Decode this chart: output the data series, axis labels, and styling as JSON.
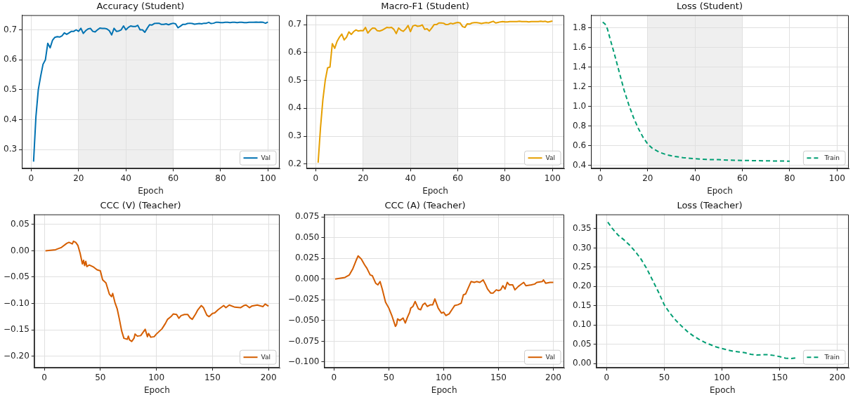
{
  "chart_data": [
    {
      "type": "line",
      "title": "Accuracy (Student)",
      "xlabel": "Epoch",
      "grid": true,
      "legend": "bottom right",
      "xlim": [
        -3.95,
        104.95
      ],
      "xticks": [
        0,
        20,
        40,
        60,
        80,
        100
      ],
      "ylim": [
        0.237,
        0.749
      ],
      "yticks": [
        0.3,
        0.4,
        0.5,
        0.6,
        0.7
      ],
      "bands": [
        {
          "axis": "x",
          "from": 20,
          "to": 60,
          "color": "#efefef"
        }
      ],
      "x": [
        1,
        2,
        3,
        4,
        5,
        6,
        7,
        8,
        9,
        10,
        11,
        12,
        13,
        14,
        15,
        16,
        17,
        18,
        19,
        20,
        21,
        22,
        23,
        24,
        25,
        26,
        27,
        28,
        29,
        30,
        31,
        32,
        33,
        34,
        35,
        36,
        37,
        38,
        39,
        40,
        41,
        42,
        43,
        44,
        45,
        46,
        47,
        48,
        49,
        50,
        51,
        52,
        53,
        54,
        55,
        56,
        57,
        58,
        59,
        60,
        61,
        62,
        63,
        64,
        65,
        66,
        67,
        68,
        69,
        70,
        71,
        72,
        73,
        74,
        75,
        76,
        77,
        78,
        79,
        80,
        81,
        82,
        83,
        84,
        85,
        86,
        87,
        88,
        89,
        90,
        91,
        92,
        93,
        94,
        95,
        96,
        97,
        98,
        99,
        100
      ],
      "series": [
        {
          "name": "Val",
          "color": "#0072b2",
          "values": [
            0.26,
            0.41,
            0.5,
            0.545,
            0.585,
            0.6,
            0.655,
            0.64,
            0.665,
            0.675,
            0.677,
            0.676,
            0.68,
            0.69,
            0.685,
            0.69,
            0.695,
            0.695,
            0.7,
            0.695,
            0.705,
            0.688,
            0.697,
            0.703,
            0.705,
            0.695,
            0.693,
            0.7,
            0.706,
            0.705,
            0.705,
            0.703,
            0.697,
            0.683,
            0.705,
            0.695,
            0.696,
            0.7,
            0.713,
            0.7,
            0.708,
            0.713,
            0.711,
            0.711,
            0.715,
            0.7,
            0.7,
            0.692,
            0.705,
            0.717,
            0.716,
            0.721,
            0.722,
            0.722,
            0.718,
            0.718,
            0.72,
            0.717,
            0.72,
            0.722,
            0.72,
            0.707,
            0.712,
            0.718,
            0.718,
            0.721,
            0.722,
            0.721,
            0.719,
            0.72,
            0.721,
            0.72,
            0.722,
            0.722,
            0.725,
            0.721,
            0.722,
            0.725,
            0.725,
            0.724,
            0.724,
            0.725,
            0.725,
            0.724,
            0.725,
            0.725,
            0.724,
            0.725,
            0.725,
            0.724,
            0.724,
            0.725,
            0.725,
            0.725,
            0.726,
            0.725,
            0.726,
            0.725,
            0.722,
            0.726
          ]
        }
      ]
    },
    {
      "type": "line",
      "title": "Macro-F1 (Student)",
      "xlabel": "Epoch",
      "grid": true,
      "legend": "bottom right",
      "xlim": [
        -3.95,
        104.95
      ],
      "xticks": [
        0,
        20,
        40,
        60,
        80,
        100
      ],
      "ylim": [
        0.184,
        0.734
      ],
      "yticks": [
        0.2,
        0.3,
        0.4,
        0.5,
        0.6,
        0.7
      ],
      "bands": [
        {
          "axis": "x",
          "from": 20,
          "to": 60,
          "color": "#efefef"
        }
      ],
      "x": [
        1,
        2,
        3,
        4,
        5,
        6,
        7,
        8,
        9,
        10,
        11,
        12,
        13,
        14,
        15,
        16,
        17,
        18,
        19,
        20,
        21,
        22,
        23,
        24,
        25,
        26,
        27,
        28,
        29,
        30,
        31,
        32,
        33,
        34,
        35,
        36,
        37,
        38,
        39,
        40,
        41,
        42,
        43,
        44,
        45,
        46,
        47,
        48,
        49,
        50,
        51,
        52,
        53,
        54,
        55,
        56,
        57,
        58,
        59,
        60,
        61,
        62,
        63,
        64,
        65,
        66,
        67,
        68,
        69,
        70,
        71,
        72,
        73,
        74,
        75,
        76,
        77,
        78,
        79,
        80,
        81,
        82,
        83,
        84,
        85,
        86,
        87,
        88,
        89,
        90,
        91,
        92,
        93,
        94,
        95,
        96,
        97,
        98,
        99,
        100
      ],
      "series": [
        {
          "name": "Val",
          "color": "#e69f00",
          "values": [
            0.205,
            0.33,
            0.43,
            0.5,
            0.545,
            0.548,
            0.632,
            0.615,
            0.64,
            0.655,
            0.666,
            0.645,
            0.655,
            0.674,
            0.665,
            0.675,
            0.681,
            0.677,
            0.679,
            0.678,
            0.69,
            0.67,
            0.68,
            0.688,
            0.687,
            0.678,
            0.677,
            0.68,
            0.685,
            0.69,
            0.689,
            0.69,
            0.683,
            0.668,
            0.688,
            0.68,
            0.676,
            0.685,
            0.697,
            0.675,
            0.695,
            0.698,
            0.694,
            0.695,
            0.699,
            0.683,
            0.685,
            0.677,
            0.688,
            0.7,
            0.7,
            0.706,
            0.706,
            0.705,
            0.7,
            0.701,
            0.705,
            0.703,
            0.706,
            0.708,
            0.706,
            0.693,
            0.69,
            0.703,
            0.702,
            0.706,
            0.707,
            0.707,
            0.706,
            0.704,
            0.706,
            0.707,
            0.706,
            0.709,
            0.712,
            0.706,
            0.708,
            0.71,
            0.711,
            0.71,
            0.71,
            0.711,
            0.711,
            0.711,
            0.711,
            0.712,
            0.711,
            0.711,
            0.711,
            0.71,
            0.711,
            0.711,
            0.711,
            0.711,
            0.712,
            0.711,
            0.712,
            0.709,
            0.711,
            0.713
          ]
        }
      ]
    },
    {
      "type": "line",
      "title": "Loss (Student)",
      "xlabel": "Epoch",
      "grid": true,
      "legend": "bottom right",
      "line_style": "dashed",
      "xlim": [
        -3.95,
        104.95
      ],
      "xticks": [
        0,
        20,
        40,
        60,
        80,
        100
      ],
      "ylim": [
        0.37,
        1.93
      ],
      "yticks": [
        0.4,
        0.6,
        0.8,
        {
          "value": 1,
          "label": "1.0"
        },
        1.2,
        1.4,
        1.6,
        1.8
      ],
      "bands": [
        {
          "axis": "x",
          "from": 20,
          "to": 60,
          "color": "#efefef"
        }
      ],
      "x": [
        1,
        2,
        3,
        4,
        6,
        8,
        10,
        12,
        14,
        16,
        18,
        20,
        22,
        25,
        28,
        31,
        35,
        40,
        45,
        50,
        55,
        60,
        70,
        80
      ],
      "series": [
        {
          "name": "Train",
          "color": "#009e73",
          "values": [
            1.86,
            1.84,
            1.79,
            1.7,
            1.53,
            1.35,
            1.17,
            1.02,
            0.89,
            0.78,
            0.69,
            0.62,
            0.575,
            0.535,
            0.51,
            0.495,
            0.48,
            0.47,
            0.462,
            0.46,
            0.455,
            0.452,
            0.448,
            0.445
          ]
        }
      ]
    },
    {
      "type": "line",
      "title": "CCC (V) (Teacher)",
      "xlabel": "Epoch",
      "grid": true,
      "legend": "bottom right",
      "xlim": [
        -8.95,
        209.95
      ],
      "xticks": [
        0,
        50,
        100,
        150,
        200
      ],
      "ylim": [
        -0.222,
        0.069
      ],
      "yticks": [
        {
          "value": -0.2,
          "label": "−0.20"
        },
        {
          "value": -0.15,
          "label": "−0.15"
        },
        {
          "value": -0.1,
          "label": "−0.10"
        },
        {
          "value": -0.05,
          "label": "−0.05"
        },
        {
          "value": 0,
          "label": "0.00"
        },
        0.05
      ],
      "x": [
        1,
        10,
        15,
        20,
        22,
        25,
        26,
        28,
        30,
        32,
        33,
        34,
        35,
        36,
        37,
        38,
        40,
        44,
        47,
        50,
        52,
        55,
        58,
        60,
        61,
        63,
        65,
        67,
        69,
        71,
        74,
        75,
        76,
        78,
        80,
        81,
        83,
        86,
        88,
        90,
        92,
        93,
        95,
        98,
        100,
        105,
        108,
        110,
        113,
        115,
        118,
        120,
        122,
        125,
        128,
        130,
        132,
        135,
        137,
        140,
        142,
        145,
        147,
        150,
        152,
        155,
        160,
        162,
        165,
        170,
        175,
        178,
        180,
        183,
        185,
        190,
        195,
        197,
        200
      ],
      "series": [
        {
          "name": "Val",
          "color": "#d55e00",
          "values": [
            0.0,
            0.002,
            0.006,
            0.014,
            0.016,
            0.013,
            0.018,
            0.016,
            0.01,
            -0.005,
            -0.015,
            -0.025,
            -0.018,
            -0.028,
            -0.02,
            -0.03,
            -0.027,
            -0.031,
            -0.036,
            -0.038,
            -0.055,
            -0.061,
            -0.082,
            -0.087,
            -0.081,
            -0.098,
            -0.11,
            -0.13,
            -0.152,
            -0.166,
            -0.168,
            -0.162,
            -0.169,
            -0.172,
            -0.166,
            -0.158,
            -0.162,
            -0.161,
            -0.155,
            -0.149,
            -0.163,
            -0.157,
            -0.164,
            -0.163,
            -0.158,
            -0.148,
            -0.138,
            -0.13,
            -0.125,
            -0.12,
            -0.121,
            -0.128,
            -0.123,
            -0.121,
            -0.121,
            -0.127,
            -0.13,
            -0.12,
            -0.112,
            -0.104,
            -0.108,
            -0.122,
            -0.125,
            -0.119,
            -0.118,
            -0.112,
            -0.104,
            -0.108,
            -0.103,
            -0.107,
            -0.108,
            -0.104,
            -0.103,
            -0.108,
            -0.105,
            -0.103,
            -0.106,
            -0.101,
            -0.105
          ]
        }
      ]
    },
    {
      "type": "line",
      "title": "CCC (A) (Teacher)",
      "xlabel": "Epoch",
      "grid": true,
      "legend": "bottom right",
      "xlim": [
        -8.95,
        209.95
      ],
      "xticks": [
        0,
        50,
        100,
        150,
        200
      ],
      "ylim": [
        -0.107,
        0.078
      ],
      "yticks": [
        {
          "value": -0.1,
          "label": "−0.100"
        },
        {
          "value": -0.075,
          "label": "−0.075"
        },
        {
          "value": -0.05,
          "label": "−0.050"
        },
        {
          "value": -0.025,
          "label": "−0.025"
        },
        {
          "value": 0,
          "label": "0.000"
        },
        {
          "value": 0.025,
          "label": "0.025"
        },
        {
          "value": 0.05,
          "label": "0.050"
        },
        {
          "value": 0.075,
          "label": "0.075"
        }
      ],
      "x": [
        1,
        10,
        14,
        17,
        20,
        22,
        25,
        28,
        30,
        33,
        35,
        38,
        40,
        42,
        44,
        47,
        50,
        53,
        56,
        57,
        58,
        60,
        63,
        65,
        67,
        69,
        70,
        72,
        74,
        77,
        79,
        81,
        83,
        85,
        88,
        90,
        92,
        95,
        98,
        100,
        102,
        105,
        108,
        110,
        113,
        116,
        118,
        120,
        122,
        125,
        128,
        130,
        133,
        136,
        138,
        140,
        143,
        145,
        148,
        150,
        152,
        154,
        156,
        158,
        160,
        163,
        165,
        168,
        170,
        173,
        175,
        180,
        183,
        185,
        190,
        191,
        193,
        197,
        200
      ],
      "series": [
        {
          "name": "Val",
          "color": "#d55e00",
          "values": [
            0.0,
            0.002,
            0.005,
            0.012,
            0.022,
            0.028,
            0.024,
            0.017,
            0.013,
            0.005,
            0.004,
            -0.005,
            -0.007,
            -0.003,
            -0.012,
            -0.028,
            -0.035,
            -0.045,
            -0.057,
            -0.055,
            -0.048,
            -0.05,
            -0.047,
            -0.053,
            -0.046,
            -0.04,
            -0.035,
            -0.033,
            -0.027,
            -0.036,
            -0.037,
            -0.031,
            -0.029,
            -0.033,
            -0.031,
            -0.031,
            -0.024,
            -0.035,
            -0.041,
            -0.04,
            -0.044,
            -0.042,
            -0.036,
            -0.032,
            -0.031,
            -0.029,
            -0.019,
            -0.018,
            -0.012,
            -0.003,
            -0.004,
            -0.003,
            -0.004,
            -0.001,
            -0.006,
            -0.012,
            -0.017,
            -0.017,
            -0.013,
            -0.014,
            -0.013,
            -0.008,
            -0.012,
            -0.004,
            -0.007,
            -0.007,
            -0.013,
            -0.009,
            -0.007,
            -0.004,
            -0.008,
            -0.007,
            -0.006,
            -0.004,
            -0.003,
            -0.001,
            -0.005,
            -0.004,
            -0.004
          ]
        }
      ]
    },
    {
      "type": "line",
      "title": "Loss (Teacher)",
      "xlabel": "Epoch",
      "grid": true,
      "legend": "bottom right",
      "line_style": "dashed",
      "xlim": [
        -8.95,
        209.95
      ],
      "xticks": [
        0,
        50,
        100,
        150,
        200
      ],
      "ylim": [
        -0.011,
        0.387
      ],
      "yticks": [
        {
          "value": 0,
          "label": "0.00"
        },
        0.05,
        {
          "value": 0.1,
          "label": "0.10"
        },
        0.15,
        {
          "value": 0.2,
          "label": "0.20"
        },
        0.25,
        {
          "value": 0.3,
          "label": "0.30"
        },
        0.35
      ],
      "x": [
        1,
        5,
        10,
        15,
        20,
        25,
        30,
        35,
        40,
        45,
        50,
        55,
        60,
        65,
        70,
        75,
        80,
        85,
        90,
        95,
        100,
        105,
        110,
        115,
        120,
        125,
        130,
        135,
        140,
        145,
        150,
        155,
        160,
        165
      ],
      "series": [
        {
          "name": "Train",
          "color": "#009e73",
          "values": [
            0.367,
            0.35,
            0.333,
            0.321,
            0.307,
            0.29,
            0.27,
            0.245,
            0.215,
            0.185,
            0.152,
            0.13,
            0.112,
            0.097,
            0.083,
            0.072,
            0.063,
            0.055,
            0.049,
            0.043,
            0.039,
            0.035,
            0.032,
            0.03,
            0.028,
            0.024,
            0.022,
            0.023,
            0.023,
            0.021,
            0.018,
            0.014,
            0.013,
            0.015
          ]
        }
      ]
    }
  ]
}
